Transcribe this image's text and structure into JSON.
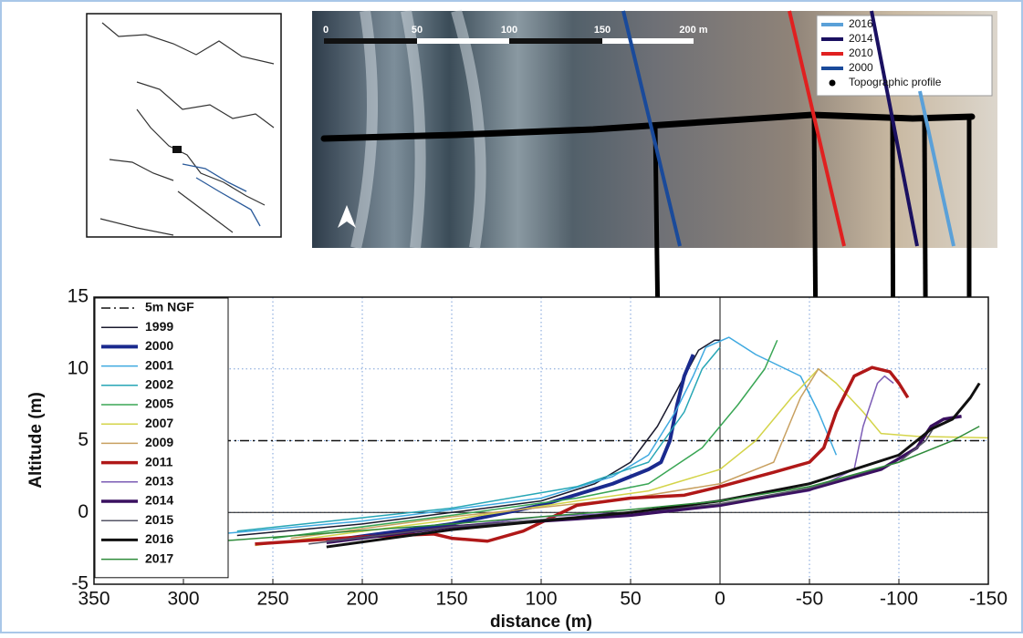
{
  "chart_data": {
    "type": "line",
    "x_label": "distance (m)",
    "y_label": "Altitude (m)",
    "xlim": [
      350,
      -150
    ],
    "xticks": [
      350,
      300,
      250,
      200,
      150,
      100,
      50,
      0,
      -50,
      -100,
      -150
    ],
    "ylim": [
      -5,
      15
    ],
    "yticks": [
      -5,
      0,
      5,
      10,
      15
    ],
    "grid": true,
    "grid_color": "#7a9fd8",
    "legend": "upper left",
    "series": [
      {
        "name": "5m NGF",
        "color": "#111111",
        "dash": "dashdot",
        "width": 1.5,
        "x": [
          350,
          -150
        ],
        "values": [
          5,
          5
        ]
      },
      {
        "name": "1999",
        "color": "#1a1a2e",
        "width": 1.5,
        "x": [
          270,
          200,
          150,
          100,
          70,
          50,
          35,
          22,
          12,
          3,
          0
        ],
        "values": [
          -1.6,
          -0.8,
          0,
          0.8,
          2,
          3.5,
          6,
          9,
          11.3,
          12,
          12
        ]
      },
      {
        "name": "2000",
        "color": "#1a2a8e",
        "width": 4,
        "x": [
          220,
          150,
          100,
          60,
          40,
          33,
          28,
          24,
          20,
          15
        ],
        "values": [
          -2,
          -0.8,
          0.5,
          2,
          3,
          3.5,
          5,
          7.5,
          9.5,
          11
        ]
      },
      {
        "name": "2001",
        "color": "#3fa9e0",
        "width": 1.5,
        "x": [
          280,
          200,
          150,
          100,
          60,
          40,
          25,
          15,
          8,
          -5,
          -20,
          -45,
          -55,
          -65
        ],
        "values": [
          -1.5,
          -0.6,
          0.2,
          1,
          2.5,
          4,
          7,
          9.5,
          11.5,
          12.2,
          11,
          9.5,
          7,
          4
        ]
      },
      {
        "name": "2002",
        "color": "#26a6b5",
        "width": 1.5,
        "x": [
          270,
          150,
          80,
          40,
          20,
          10,
          0
        ],
        "values": [
          -1.3,
          0.3,
          1.8,
          3.5,
          7,
          10,
          11.5
        ]
      },
      {
        "name": "2005",
        "color": "#3aa655",
        "width": 1.5,
        "x": [
          250,
          150,
          80,
          40,
          10,
          -10,
          -25,
          -32
        ],
        "values": [
          -1.8,
          -0.2,
          1,
          2,
          4.5,
          7.5,
          10,
          12
        ]
      },
      {
        "name": "2007",
        "color": "#d4d44a",
        "width": 1.5,
        "x": [
          260,
          150,
          80,
          40,
          0,
          -20,
          -40,
          -55,
          -65,
          -80,
          -90,
          -110,
          -150
        ],
        "values": [
          -2.3,
          -0.5,
          0.8,
          1.5,
          3,
          5,
          8,
          10,
          9,
          7,
          5.5,
          5.3,
          5.2
        ]
      },
      {
        "name": "2009",
        "color": "#c8a060",
        "width": 1.5,
        "x": [
          240,
          150,
          50,
          0,
          -30,
          -45,
          -55,
          -60
        ],
        "values": [
          -1.8,
          -0.3,
          1,
          2,
          3.5,
          8,
          10,
          9.5
        ]
      },
      {
        "name": "2011",
        "color": "#b01818",
        "width": 3.5,
        "x": [
          260,
          200,
          160,
          150,
          130,
          110,
          80,
          50,
          20,
          0,
          -30,
          -50,
          -58,
          -65,
          -75,
          -85,
          -95,
          -100,
          -105
        ],
        "values": [
          -2.2,
          -1.7,
          -1.5,
          -1.8,
          -2,
          -1.3,
          0.5,
          1,
          1.2,
          1.8,
          2.8,
          3.5,
          4.5,
          7,
          9.5,
          10.1,
          9.8,
          9,
          8
        ]
      },
      {
        "name": "2013",
        "color": "#7b5bb5",
        "width": 1.5,
        "x": [
          220,
          150,
          100,
          50,
          0,
          -50,
          -75,
          -80,
          -88,
          -92,
          -97
        ],
        "values": [
          -2,
          -1,
          -0.3,
          0,
          0.5,
          1.5,
          3,
          6,
          9,
          9.5,
          9
        ]
      },
      {
        "name": "2014",
        "color": "#3a1060",
        "width": 3.5,
        "x": [
          220,
          150,
          50,
          0,
          -50,
          -90,
          -110,
          -118,
          -125,
          -135
        ],
        "values": [
          -2.1,
          -1,
          -0.2,
          0.5,
          1.6,
          3,
          4.5,
          6,
          6.5,
          6.7
        ]
      },
      {
        "name": "2015",
        "color": "#555566",
        "width": 1.5,
        "x": [
          230,
          150,
          50,
          0,
          -50,
          -100,
          -115,
          -120,
          -130
        ],
        "values": [
          -2.2,
          -1,
          0,
          0.6,
          1.7,
          3.5,
          5,
          6,
          6.5
        ]
      },
      {
        "name": "2016",
        "color": "#111111",
        "width": 3,
        "x": [
          220,
          150,
          50,
          0,
          -50,
          -100,
          -118,
          -130,
          -140,
          -145
        ],
        "values": [
          -2.4,
          -1.2,
          0,
          0.8,
          2,
          4,
          5.8,
          6.5,
          8,
          9
        ]
      },
      {
        "name": "2017",
        "color": "#2e8b3a",
        "width": 1.5,
        "x": [
          280,
          150,
          50,
          0,
          -50,
          -100,
          -130,
          -145
        ],
        "values": [
          -2,
          -0.8,
          0.2,
          0.8,
          1.8,
          3.5,
          5,
          6
        ]
      }
    ]
  },
  "photo": {
    "scale_labels": [
      "0",
      "50",
      "100",
      "150",
      "200 m"
    ],
    "legend": [
      {
        "name": "2016",
        "color": "#5aa0d8"
      },
      {
        "name": "2014",
        "color": "#1a1060"
      },
      {
        "name": "2010",
        "color": "#e02020"
      },
      {
        "name": "2000",
        "color": "#1a4a9a"
      },
      {
        "name": "Topographic profile",
        "color": "#000000"
      }
    ]
  }
}
